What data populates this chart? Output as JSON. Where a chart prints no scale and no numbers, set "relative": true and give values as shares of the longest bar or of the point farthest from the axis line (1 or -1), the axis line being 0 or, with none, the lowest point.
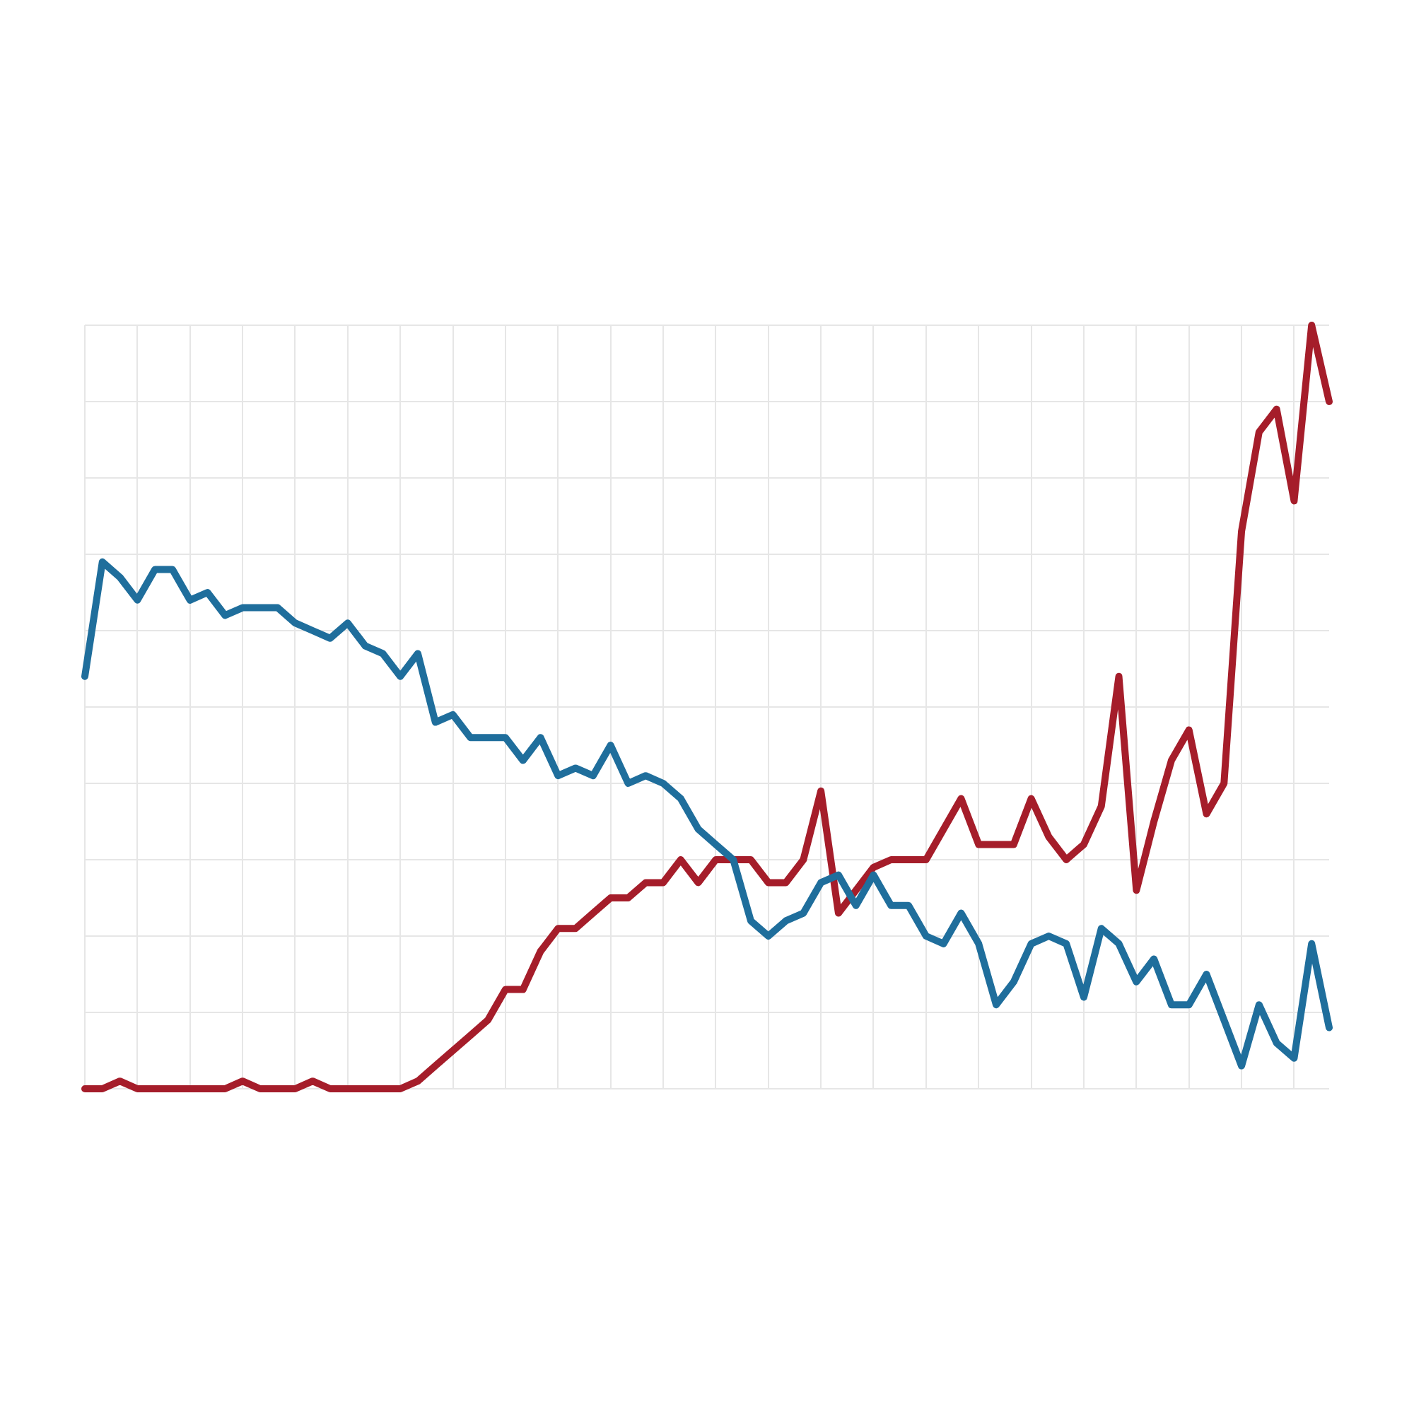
{
  "chart_data": {
    "type": "line",
    "relative": true,
    "grid": true,
    "legend": false,
    "marker": "none",
    "line_style": "solid",
    "categories": [
      null,
      null,
      null,
      null,
      null,
      null,
      null,
      null,
      null,
      null,
      null,
      null,
      null,
      null,
      null,
      null,
      null,
      null,
      null,
      null,
      null,
      null,
      null,
      null,
      null,
      null,
      null,
      null,
      null,
      null,
      null,
      null,
      null,
      null,
      null,
      null,
      null,
      null,
      null,
      null,
      null,
      null,
      null,
      null,
      null,
      null,
      null,
      null,
      null,
      null,
      null,
      null,
      null,
      null,
      null,
      null,
      null,
      null,
      null,
      null,
      null,
      null,
      null,
      null,
      null,
      null,
      null,
      null,
      null,
      null,
      null,
      null
    ],
    "series": [
      {
        "color": "#1f6e9c",
        "values": [
          0.54,
          0.69,
          0.67,
          0.64,
          0.68,
          0.68,
          0.64,
          0.65,
          0.62,
          0.63,
          0.63,
          0.63,
          0.61,
          0.6,
          0.59,
          0.61,
          0.58,
          0.57,
          0.54,
          0.57,
          0.48,
          0.49,
          0.46,
          0.46,
          0.46,
          0.43,
          0.46,
          0.41,
          0.42,
          0.41,
          0.45,
          0.4,
          0.41,
          0.4,
          0.38,
          0.34,
          0.32,
          0.3,
          0.22,
          0.2,
          0.22,
          0.23,
          0.27,
          0.28,
          0.24,
          0.28,
          0.24,
          0.24,
          0.2,
          0.19,
          0.23,
          0.19,
          0.11,
          0.14,
          0.19,
          0.2,
          0.19,
          0.12,
          0.21,
          0.19,
          0.14,
          0.17,
          0.11,
          0.11,
          0.15,
          0.09,
          0.03,
          0.11,
          0.06,
          0.04,
          0.19,
          0.08
        ]
      },
      {
        "color": "#a51d2a",
        "values": [
          0,
          0,
          0.01,
          0,
          0,
          0,
          0,
          0,
          0,
          0.01,
          0,
          0,
          0,
          0.01,
          0,
          0,
          0,
          0,
          0,
          0.01,
          0.03,
          0.05,
          0.07,
          0.09,
          0.13,
          0.13,
          0.18,
          0.21,
          0.21,
          0.23,
          0.25,
          0.25,
          0.27,
          0.27,
          0.3,
          0.27,
          0.3,
          0.3,
          0.3,
          0.27,
          0.27,
          0.3,
          0.39,
          0.23,
          0.26,
          0.29,
          0.3,
          0.3,
          0.3,
          0.34,
          0.38,
          0.32,
          0.32,
          0.32,
          0.38,
          0.33,
          0.3,
          0.32,
          0.37,
          0.54,
          0.26,
          0.35,
          0.43,
          0.47,
          0.36,
          0.4,
          0.73,
          0.86,
          0.89,
          0.77,
          1,
          0.9
        ]
      }
    ]
  }
}
